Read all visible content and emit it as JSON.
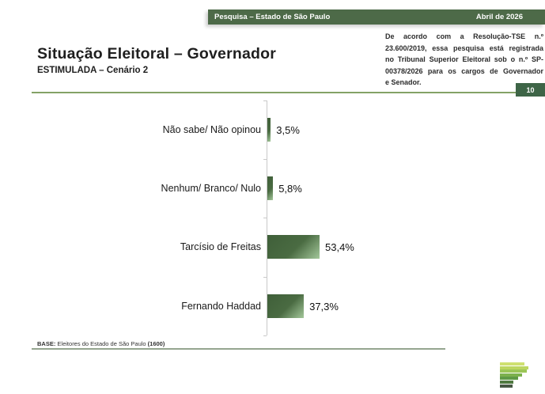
{
  "header": {
    "title": "Pesquisa – Estado de São Paulo",
    "date": "Abril de 2026",
    "bar_color": "#4d6a48"
  },
  "title": {
    "main": "Situação Eleitoral – Governador",
    "subtitle": "ESTIMULADA – Cenário 2"
  },
  "disclaimer": {
    "text": "De acordo com a Resolução-TSE n.º 23.600/2019, essa pesquisa está registrada no Tribunal Superior Eleitoral sob o n.º SP-00378/2026 para os cargos de Governador e Senador.",
    "lines": [
      "De acordo com a Resolução-TSE n.º",
      "23.600/2019, essa pesquisa está registrada",
      "no Tribunal Superior Eleitoral sob o n.º SP-",
      "00378/2026 para os cargos de Governador",
      "e Senador."
    ],
    "page_number": "10"
  },
  "chart_data": {
    "type": "bar",
    "orientation": "horizontal",
    "title": "Situação Eleitoral – Governador",
    "subtitle": "ESTIMULADA – Cenário 2",
    "categories": [
      "Não sabe/ Não opinou",
      "Nenhum/ Branco/ Nulo",
      "Tarcísio de Freitas",
      "Fernando Haddad"
    ],
    "values": [
      3.5,
      5.8,
      53.4,
      37.3
    ],
    "value_labels": [
      "3,5%",
      "5,8%",
      "53,4%",
      "37,3%"
    ],
    "xlim": [
      0,
      100
    ],
    "grid": false,
    "legend": false,
    "bar_color_dark": "#47683f",
    "bar_color_light": "#9fc497",
    "axis_color": "#c9c9c9"
  },
  "footer": {
    "base_label": "BASE:",
    "base_text": " Eleitores do Estado de São Paulo ",
    "base_count": "(1600)"
  },
  "colors": {
    "header_green": "#4d6a48",
    "badge_green": "#3e6547",
    "rule_green": "#84a266",
    "footer_rule": "#95a58f"
  },
  "logo": {
    "bars": [
      {
        "w": 31,
        "color": "#cfe070"
      },
      {
        "w": 36,
        "color": "#bcd660"
      },
      {
        "w": 34,
        "color": "#9cc657"
      },
      {
        "w": 28,
        "color": "#7cb14d"
      },
      {
        "w": 23,
        "color": "#5f9a46"
      },
      {
        "w": 17,
        "color": "#4f7a41"
      },
      {
        "w": 16,
        "color": "#475744"
      }
    ]
  }
}
